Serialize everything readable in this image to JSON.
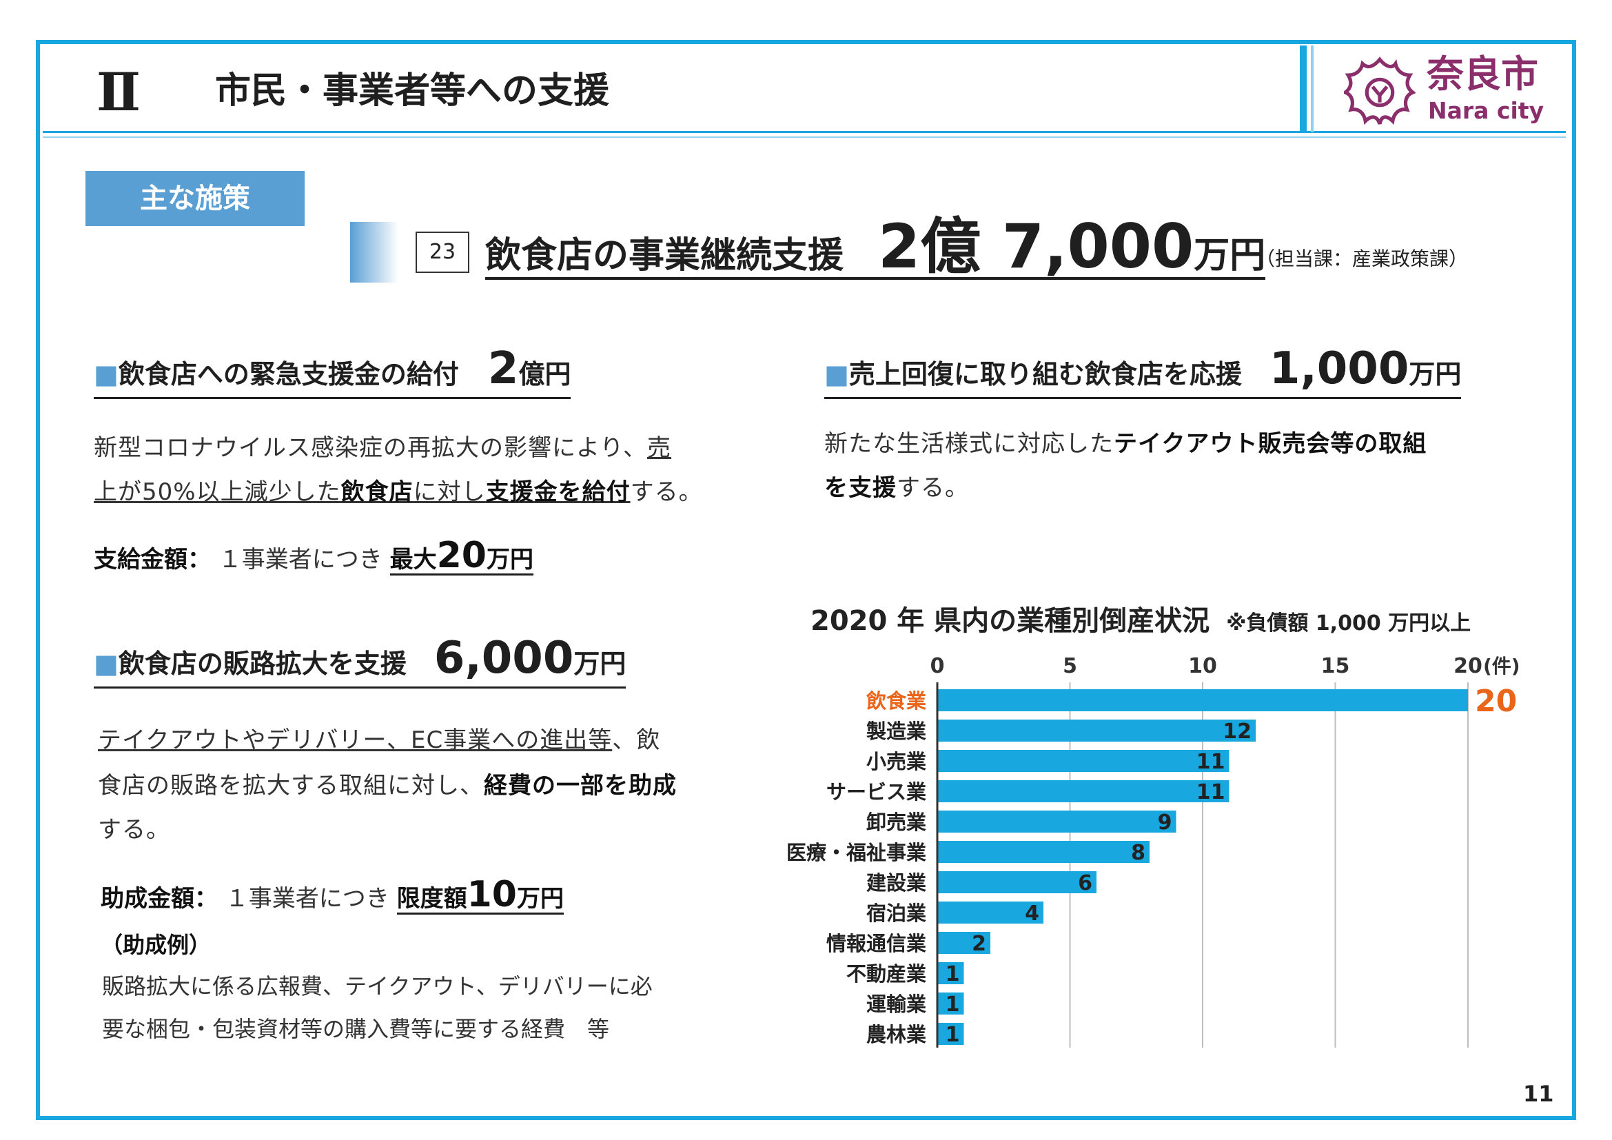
{
  "header": {
    "section_num": "Ⅱ",
    "section_title": "市民・事業者等への支援",
    "logo_jp": "奈良市",
    "logo_en": "Nara city"
  },
  "main_tag": "主な施策",
  "measure": {
    "number": "23",
    "title": "飲食店の事業継続支援",
    "amount_big": "2億 7,000",
    "amount_unit": "万円",
    "dept": "（担当課：産業政策課）"
  },
  "sec1": {
    "marker": "■",
    "title": "飲食店への緊急支援金の給付",
    "amount_big": "2",
    "amount_unit": "億円",
    "line1_a": "新型コロナウイルス感染症の再拡大の影響により、",
    "line1_b": "売",
    "line2_a": "上が50%以上減少した",
    "line2_b": "飲食店",
    "line2_c": "に対し",
    "line2_d": "支援金を給付",
    "line2_e": "する。",
    "pay_label": "支給金額：",
    "pay_text": "１事業者につき",
    "pay_prefix": "最大",
    "pay_big": "20",
    "pay_unit": "万円"
  },
  "sec2": {
    "marker": "■",
    "title": "飲食店の販路拡大を支援",
    "amount_big": "6,000",
    "amount_unit": "万円",
    "line1_a": "テイクアウトやデリバリー、EC事業への進出等",
    "line1_b": "、飲",
    "line2_a": "食店の販路を拡大する取組に対し、",
    "line2_b": "経費の一部を助成",
    "line3": "する。",
    "pay_label": "助成金額：",
    "pay_text": "１事業者につき",
    "pay_prefix": "限度額",
    "pay_big": "10",
    "pay_unit": "万円",
    "example_label": "（助成例）",
    "example_line1": "販路拡大に係る広報費、テイクアウト、デリバリーに必",
    "example_line2": "要な梱包・包装資材等の購入費等に要する経費　等"
  },
  "sec3": {
    "marker": "■",
    "title": "売上回復に取り組む飲食店を応援",
    "amount_big": "1,000",
    "amount_unit": "万円",
    "line1_a": "新たな生活様式に対応した",
    "line1_b": "テイクアウト販売会等の取組",
    "line2_a": "を支援",
    "line2_b": "する。"
  },
  "chart_data": {
    "type": "bar",
    "orientation": "horizontal",
    "title": "2020 年 県内の業種別倒産状況",
    "note": "※負債額 1,000 万円以上",
    "unit_label": "(件)",
    "categories": [
      "飲食業",
      "製造業",
      "小売業",
      "サービス業",
      "卸売業",
      "医療・福祉事業",
      "建設業",
      "宿泊業",
      "情報通信業",
      "不動産業",
      "運輸業",
      "農林業"
    ],
    "values": [
      20,
      12,
      11,
      11,
      9,
      8,
      6,
      4,
      2,
      1,
      1,
      1
    ],
    "xlim": [
      0,
      20
    ],
    "ticks": [
      0,
      5,
      10,
      15,
      20
    ],
    "grid": true,
    "bar_color": "#19a7e0",
    "highlight_color": "#e8651a"
  },
  "page_number": "11"
}
